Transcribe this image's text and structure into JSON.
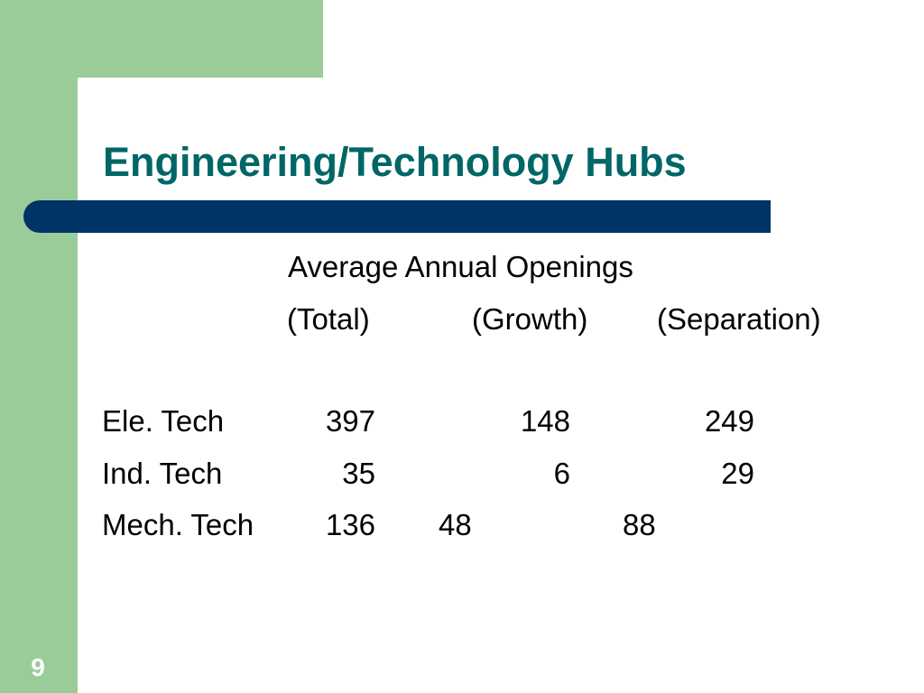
{
  "slide": {
    "title": "Engineering/Technology Hubs",
    "page_number": "9",
    "table": {
      "caption": "Average Annual Openings",
      "headers": [
        "(Total)",
        "(Growth)",
        "(Separation)"
      ],
      "rows": [
        {
          "label": "Ele. Tech",
          "total": "397",
          "growth": "148",
          "separation": "249"
        },
        {
          "label": "Ind. Tech",
          "total": "35",
          "growth": "6",
          "separation": "29"
        },
        {
          "label": "Mech. Tech",
          "total": "136",
          "growth": "48",
          "separation": "88"
        }
      ]
    }
  },
  "colors": {
    "accent_green": "#99cc99",
    "title_teal": "#006666",
    "bar_navy": "#003366"
  }
}
